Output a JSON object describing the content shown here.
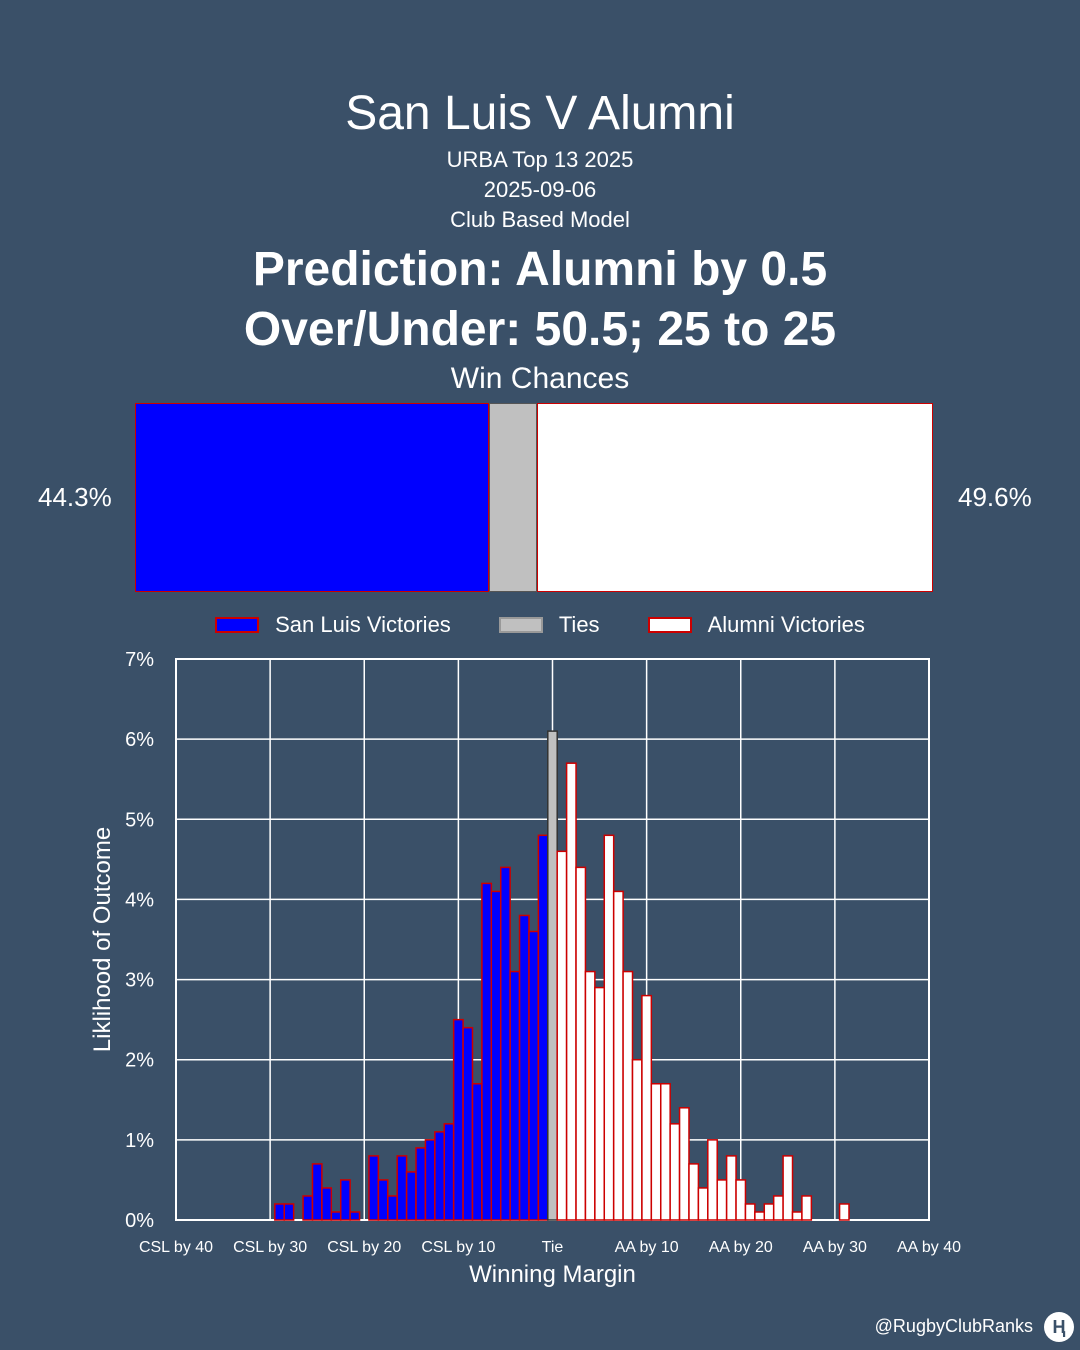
{
  "header": {
    "title": "San Luis V Alumni",
    "competition": "URBA Top 13 2025",
    "date": "2025-09-06",
    "model": "Club Based Model",
    "prediction": "Prediction: Alumni by 0.5",
    "over_under": "Over/Under: 50.5; 25 to 25",
    "win_chances_label": "Win Chances"
  },
  "win_chances": {
    "home_pct_label": "44.3%",
    "away_pct_label": "49.6%",
    "home": 44.3,
    "tie": 6.1,
    "away": 49.6
  },
  "legend": {
    "home": "San Luis Victories",
    "tie": "Ties",
    "away": "Alumni Victories"
  },
  "colors": {
    "background": "#3a5068",
    "home": "#0000ff",
    "tie": "#c0c0c0",
    "away": "#ffffff",
    "edge": "#cc0000"
  },
  "chart_data": {
    "type": "bar",
    "xlabel": "Winning Margin",
    "ylabel": "Liklihood of Outcome",
    "xlim": [
      -40,
      40
    ],
    "ylim": [
      0,
      7
    ],
    "xticks": [
      -40,
      -30,
      -20,
      -10,
      0,
      10,
      20,
      30,
      40
    ],
    "xtick_labels": [
      "CSL by 40",
      "CSL by 30",
      "CSL by 20",
      "CSL by 10",
      "Tie",
      "AA by 10",
      "AA by 20",
      "AA by 30",
      "AA by 40"
    ],
    "yticks": [
      0,
      1,
      2,
      3,
      4,
      5,
      6,
      7
    ],
    "ytick_labels": [
      "0%",
      "1%",
      "2%",
      "3%",
      "4%",
      "5%",
      "6%",
      "7%"
    ],
    "grid": true,
    "series": [
      {
        "name": "San Luis Victories",
        "x": [
          -29,
          -28,
          -26,
          -25,
          -24,
          -23,
          -22,
          -21,
          -19,
          -18,
          -17,
          -16,
          -15,
          -14,
          -13,
          -12,
          -11,
          -10,
          -9,
          -8,
          -7,
          -6,
          -5,
          -4,
          -3,
          -2,
          -1
        ],
        "values": [
          0.2,
          0.2,
          0.3,
          0.7,
          0.4,
          0.1,
          0.5,
          0.1,
          0.8,
          0.5,
          0.3,
          0.8,
          0.6,
          0.9,
          1.0,
          1.1,
          1.2,
          2.5,
          2.4,
          1.7,
          4.2,
          4.1,
          4.4,
          3.1,
          3.8,
          3.6,
          4.8
        ]
      },
      {
        "name": "Ties",
        "x": [
          0
        ],
        "values": [
          6.1
        ]
      },
      {
        "name": "Alumni Victories",
        "x": [
          1,
          2,
          3,
          4,
          5,
          6,
          7,
          8,
          9,
          10,
          11,
          12,
          13,
          14,
          15,
          16,
          17,
          18,
          19,
          20,
          21,
          22,
          23,
          24,
          25,
          26,
          27,
          28,
          29,
          31
        ],
        "values": [
          4.6,
          5.7,
          4.4,
          3.1,
          2.9,
          4.8,
          4.1,
          3.1,
          2.0,
          2.8,
          1.7,
          1.7,
          1.2,
          1.4,
          0.7,
          0.4,
          1.0,
          0.5,
          0.8,
          0.5,
          0.2,
          0.1,
          0.2,
          0.3,
          0.8,
          0.1,
          0.3,
          0.0,
          0.0,
          0.2
        ]
      }
    ]
  },
  "watermark": "@RugbyClubRanks",
  "logo_glyph": "Ⱨ"
}
